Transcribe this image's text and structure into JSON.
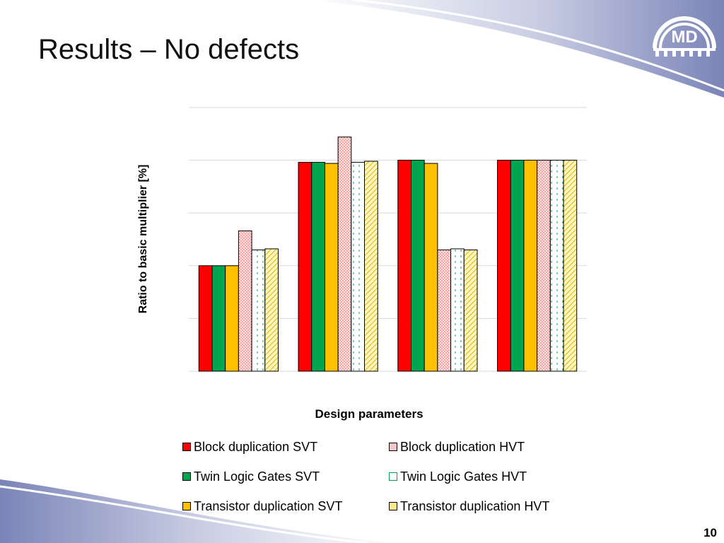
{
  "slide": {
    "title": "Results – No defects",
    "page_number": "10",
    "logo_text": "MD"
  },
  "chart_data": {
    "type": "bar",
    "title": "",
    "xlabel": "Design parameters",
    "ylabel": "Ratio to basic multiplier [%]",
    "ylim": [
      0,
      250
    ],
    "gridlines": [
      50,
      100,
      150,
      200,
      250
    ],
    "grid": true,
    "tick_labels_shown": false,
    "legend_position": "bottom",
    "categories": [
      "",
      "",
      "",
      ""
    ],
    "series": [
      {
        "name": "Block duplication SVT",
        "values": [
          100,
          198,
          200,
          200
        ],
        "color": "#ff0000",
        "pattern": "solid"
      },
      {
        "name": "Twin Logic Gates SVT",
        "values": [
          100,
          198,
          200,
          200
        ],
        "color": "#00a550",
        "pattern": "solid"
      },
      {
        "name": "Transistor duplication SVT",
        "values": [
          100,
          197,
          197,
          200
        ],
        "color": "#ffc000",
        "pattern": "solid"
      },
      {
        "name": "Block duplication HVT",
        "values": [
          133,
          222,
          115,
          200
        ],
        "color": "#f4a6a6",
        "pattern": "dotted"
      },
      {
        "name": "Twin Logic Gates HVT",
        "values": [
          115,
          198,
          116,
          200
        ],
        "color": "#00a550",
        "pattern": "dashed"
      },
      {
        "name": "Transistor duplication HVT",
        "values": [
          116,
          199,
          115,
          200
        ],
        "color": "#ffe070",
        "pattern": "diagonal"
      }
    ],
    "legend_order": [
      0,
      3,
      1,
      4,
      2,
      5
    ]
  }
}
